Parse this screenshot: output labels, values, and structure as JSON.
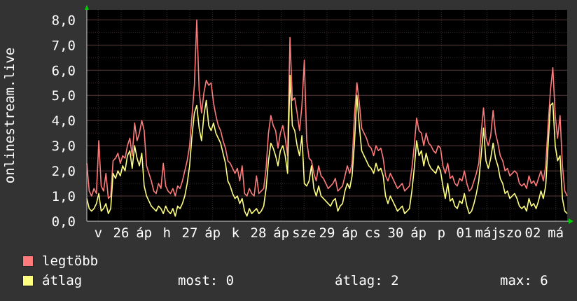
{
  "colors": {
    "background": "#333333",
    "plot_background": "#000000",
    "grid_major": "#5a3a3a",
    "grid_minor": "#3a2a2a",
    "axis_arrow": "#00cc00",
    "max_series": "#ff7b7b",
    "avg_series": "#ffff80"
  },
  "chart_data": {
    "type": "line",
    "ylabel": "onlinestream.live",
    "ylim": [
      0,
      8.4
    ],
    "yticks": [
      "0,0",
      "1,0",
      "2,0",
      "3,0",
      "4,0",
      "5,0",
      "6,0",
      "7,0",
      "8,0"
    ],
    "ytick_values": [
      0,
      1,
      2,
      3,
      4,
      5,
      6,
      7,
      8
    ],
    "xticks": [
      "v",
      "26",
      "áp",
      "h",
      "27",
      "áp",
      "k",
      "28",
      "áp",
      "sze",
      "29",
      "áp",
      "cs",
      "30",
      "áp",
      "p",
      "01",
      "máj",
      "szo",
      "02",
      "má"
    ],
    "grid": true,
    "series": [
      {
        "name": "legtöbb",
        "color": "#ff7b7b",
        "values": [
          2.3,
          1.2,
          1.0,
          1.3,
          1.1,
          3.2,
          1.4,
          1.2,
          1.9,
          0.9,
          1.0,
          2.4,
          2.5,
          2.7,
          2.3,
          2.6,
          2.5,
          3.0,
          3.3,
          2.6,
          3.9,
          3.2,
          3.5,
          4.0,
          3.6,
          2.2,
          1.9,
          1.6,
          1.2,
          1.1,
          1.5,
          1.3,
          2.3,
          1.4,
          1.2,
          1.1,
          1.3,
          1.0,
          1.4,
          1.3,
          1.6,
          2.0,
          2.4,
          3.0,
          4.2,
          5.4,
          8.0,
          5.2,
          4.3,
          5.1,
          5.6,
          5.4,
          5.5,
          4.7,
          4.2,
          3.8,
          3.6,
          3.2,
          2.9,
          2.4,
          2.3,
          2.1,
          1.9,
          2.1,
          1.6,
          2.2,
          1.1,
          1.0,
          1.3,
          1.1,
          1.0,
          1.8,
          1.1,
          1.2,
          1.3,
          2.1,
          3.5,
          4.2,
          3.8,
          3.6,
          2.9,
          3.5,
          3.8,
          3.3,
          2.6,
          7.3,
          4.8,
          4.9,
          4.3,
          3.6,
          4.6,
          6.4,
          3.2,
          2.5,
          2.4,
          1.9,
          1.6,
          2.2,
          1.8,
          1.7,
          1.5,
          1.3,
          1.4,
          1.5,
          1.7,
          1.2,
          1.3,
          1.4,
          1.8,
          2.2,
          1.9,
          2.3,
          4.2,
          5.5,
          4.7,
          3.7,
          3.5,
          3.3,
          3.0,
          2.9,
          2.6,
          3.0,
          2.8,
          2.9,
          2.5,
          1.8,
          1.6,
          1.9,
          1.7,
          1.5,
          1.3,
          1.4,
          1.5,
          1.2,
          1.3,
          1.4,
          2.1,
          3.0,
          4.1,
          3.6,
          3.5,
          3.0,
          3.5,
          3.1,
          3.0,
          2.8,
          2.7,
          3.0,
          2.9,
          2.2,
          1.9,
          2.3,
          1.7,
          1.8,
          1.5,
          1.4,
          1.7,
          1.6,
          2.0,
          1.5,
          1.2,
          1.3,
          1.6,
          1.9,
          2.3,
          3.5,
          4.5,
          3.3,
          3.0,
          3.4,
          4.4,
          3.5,
          3.1,
          2.6,
          2.4,
          2.0,
          2.1,
          1.8,
          1.9,
          2.0,
          1.9,
          1.5,
          1.4,
          1.5,
          1.3,
          1.8,
          1.5,
          1.6,
          1.4,
          1.7,
          2.0,
          1.6,
          2.2,
          3.8,
          5.2,
          6.1,
          4.2,
          3.3,
          4.2,
          2.2,
          1.2,
          1.0
        ]
      },
      {
        "name": "átlag",
        "color": "#ffff80",
        "values": [
          0.9,
          0.5,
          0.4,
          0.5,
          0.7,
          1.1,
          0.4,
          0.5,
          0.7,
          0.3,
          0.5,
          1.9,
          1.7,
          2.0,
          1.8,
          2.2,
          2.0,
          2.6,
          2.8,
          2.1,
          3.0,
          2.5,
          2.2,
          2.7,
          1.4,
          1.0,
          0.8,
          0.6,
          0.5,
          0.4,
          0.6,
          0.5,
          0.3,
          0.6,
          0.4,
          0.3,
          0.5,
          0.2,
          0.6,
          0.5,
          0.7,
          1.0,
          1.5,
          2.2,
          3.4,
          4.3,
          4.6,
          3.7,
          3.2,
          4.2,
          4.8,
          3.8,
          3.6,
          3.9,
          3.5,
          3.3,
          3.1,
          2.7,
          2.3,
          1.6,
          1.4,
          1.1,
          0.9,
          1.0,
          0.7,
          0.9,
          0.4,
          0.2,
          0.5,
          0.3,
          0.4,
          0.5,
          0.3,
          0.4,
          0.6,
          1.3,
          2.4,
          3.1,
          2.9,
          2.6,
          2.2,
          2.8,
          3.0,
          2.6,
          1.9,
          5.8,
          3.8,
          3.6,
          3.0,
          2.6,
          3.4,
          1.5,
          1.4,
          1.6,
          2.2,
          1.3,
          1.0,
          1.4,
          1.0,
          0.9,
          0.8,
          0.7,
          0.6,
          0.8,
          0.9,
          0.4,
          0.6,
          0.7,
          1.2,
          1.5,
          1.3,
          1.8,
          3.1,
          5.0,
          3.8,
          2.8,
          2.6,
          2.4,
          2.2,
          2.1,
          1.9,
          2.3,
          2.0,
          2.1,
          1.8,
          1.0,
          0.7,
          1.0,
          0.8,
          0.6,
          0.4,
          0.5,
          0.6,
          0.3,
          0.4,
          0.5,
          1.2,
          2.1,
          3.2,
          2.6,
          2.8,
          2.2,
          2.7,
          2.3,
          2.1,
          2.0,
          1.9,
          2.2,
          2.0,
          1.4,
          0.9,
          1.5,
          0.8,
          0.9,
          0.6,
          0.5,
          0.8,
          0.7,
          1.1,
          0.6,
          0.3,
          0.4,
          0.7,
          1.1,
          1.6,
          2.6,
          3.7,
          2.4,
          2.1,
          2.5,
          3.1,
          2.5,
          2.2,
          1.7,
          1.5,
          1.1,
          1.2,
          0.9,
          1.0,
          1.1,
          0.9,
          0.6,
          0.5,
          0.6,
          0.4,
          0.9,
          0.6,
          0.7,
          0.5,
          0.8,
          1.2,
          0.9,
          1.4,
          3.0,
          4.6,
          4.7,
          3.0,
          2.4,
          2.6,
          0.9,
          0.4,
          0.3
        ]
      }
    ]
  },
  "legend": [
    {
      "label": "legtöbb",
      "color": "#ff7b7b"
    },
    {
      "label": "átlag",
      "color": "#ffff80"
    }
  ],
  "stats": {
    "current": "most: 0",
    "average": "átlag: 2",
    "max": "max: 6"
  }
}
